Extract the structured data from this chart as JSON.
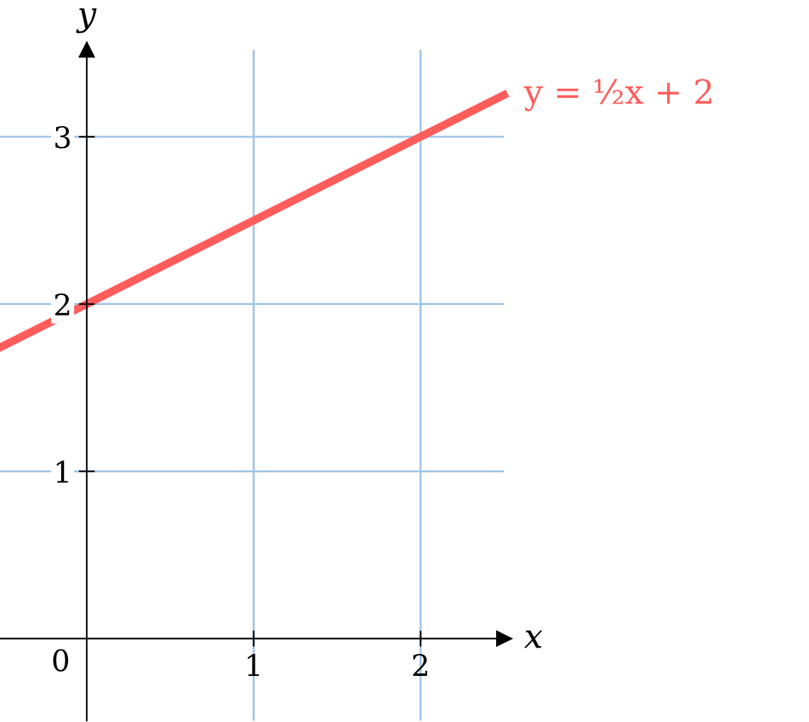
{
  "chart_data": {
    "type": "line",
    "xlabel": "x",
    "ylabel": "y",
    "x": [
      -0.52,
      2.5
    ],
    "series": [
      {
        "name": "y = ½x + 2",
        "color": "#ff5c5c",
        "values": [
          1.74,
          3.25
        ]
      }
    ],
    "xlim": [
      -0.52,
      2.5
    ],
    "ylim": [
      -0.49,
      3.52
    ],
    "xticks": [
      {
        "value": 0,
        "label": "0"
      },
      1,
      2
    ],
    "yticks": [
      1,
      2,
      3
    ],
    "grid": true,
    "marker": "none",
    "line_style": "solid"
  }
}
